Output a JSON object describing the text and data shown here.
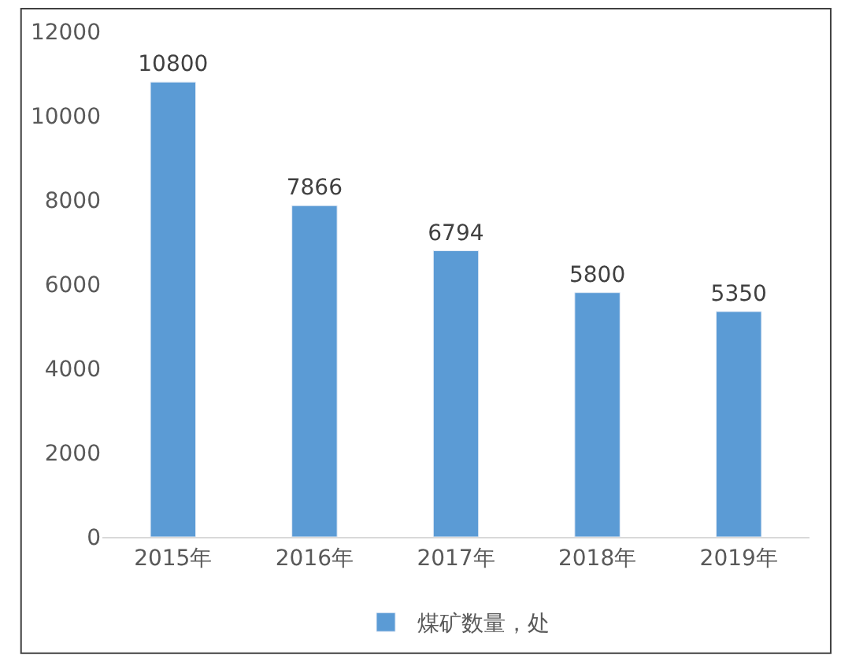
{
  "chart_data": {
    "type": "bar",
    "categories": [
      "2015年",
      "2016年",
      "2017年",
      "2018年",
      "2019年"
    ],
    "series": [
      {
        "name": "煤矿数量，处",
        "color": "#5b9bd5",
        "values": [
          10800,
          7866,
          6794,
          5800,
          5350
        ]
      }
    ],
    "ylim": [
      0,
      12000
    ],
    "yticks": [
      0,
      2000,
      4000,
      6000,
      8000,
      10000,
      12000
    ],
    "legend": "bottom",
    "data_labels": true
  }
}
